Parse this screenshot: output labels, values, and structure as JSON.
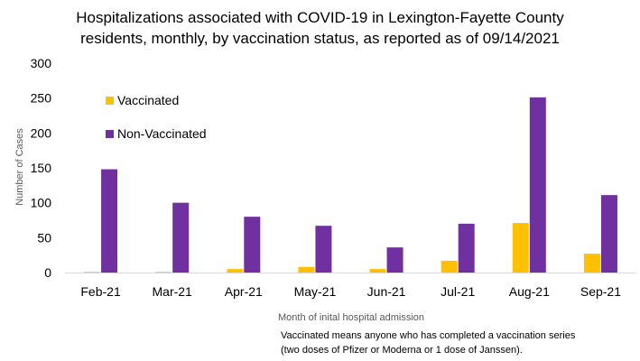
{
  "chart_data": {
    "type": "bar",
    "title_line1": "Hospitalizations associated with COVID-19 in Lexington-Fayette County",
    "title_line2": "residents, monthly, by vaccination status, as reported as of  09/14/2021",
    "xlabel": "Month of inital hospital admission",
    "ylabel": "Number of Cases",
    "ylim": [
      0,
      300
    ],
    "yticks": [
      "0",
      "50",
      "100",
      "150",
      "200",
      "250",
      "300"
    ],
    "categories": [
      "Feb-21",
      "Mar-21",
      "Apr-21",
      "May-21",
      "Jun-21",
      "Jul-21",
      "Aug-21",
      "Sep-21"
    ],
    "series": [
      {
        "name": "Vaccinated",
        "color": "#FFC000",
        "values": [
          1,
          1,
          5,
          8,
          5,
          17,
          71,
          27
        ]
      },
      {
        "name": "Non-Vaccinated",
        "color": "#7030A0",
        "values": [
          148,
          100,
          80,
          67,
          36,
          70,
          251,
          111
        ]
      }
    ],
    "grid": false,
    "legend_position": "top-left"
  },
  "footnote_line1": "Vaccinated means anyone who has completed a vaccination series",
  "footnote_line2": "(two doses of Pfizer or Moderna or 1 dose of Janssen)."
}
